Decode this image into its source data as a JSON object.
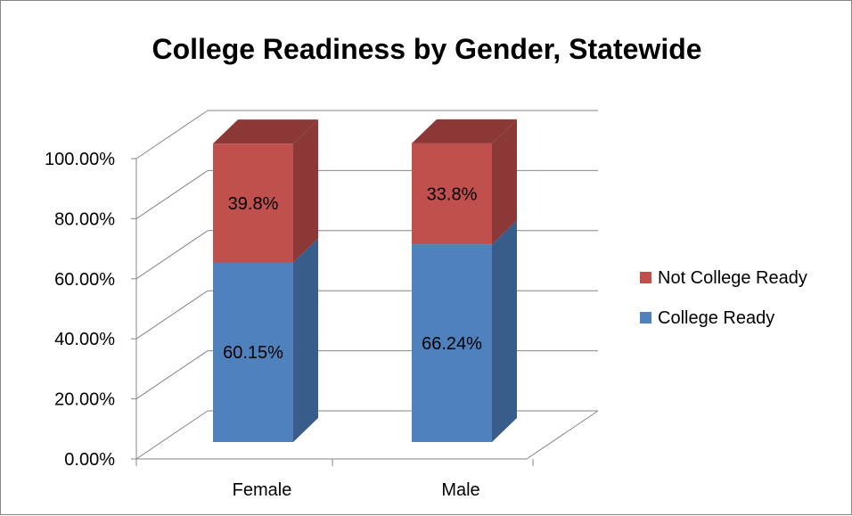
{
  "chart_data": {
    "type": "bar",
    "stacked": true,
    "three_d": true,
    "title": "College Readiness by Gender, Statewide",
    "categories": [
      "Female",
      "Male"
    ],
    "series": [
      {
        "name": "College Ready",
        "values": [
          60.15,
          66.24
        ],
        "labels": [
          "60.15%",
          "66.24%"
        ],
        "color": "#4F81BD",
        "side_color": "#385D8A"
      },
      {
        "name": "Not College Ready",
        "values": [
          39.8,
          33.8
        ],
        "labels": [
          "39.8%",
          "33.8%"
        ],
        "color": "#C0504D",
        "side_color": "#8C3836"
      }
    ],
    "y_ticks": [
      "0.00%",
      "20.00%",
      "40.00%",
      "60.00%",
      "80.00%",
      "100.00%"
    ],
    "ylim": [
      0,
      100
    ],
    "legend_position": "right",
    "grid": true
  }
}
